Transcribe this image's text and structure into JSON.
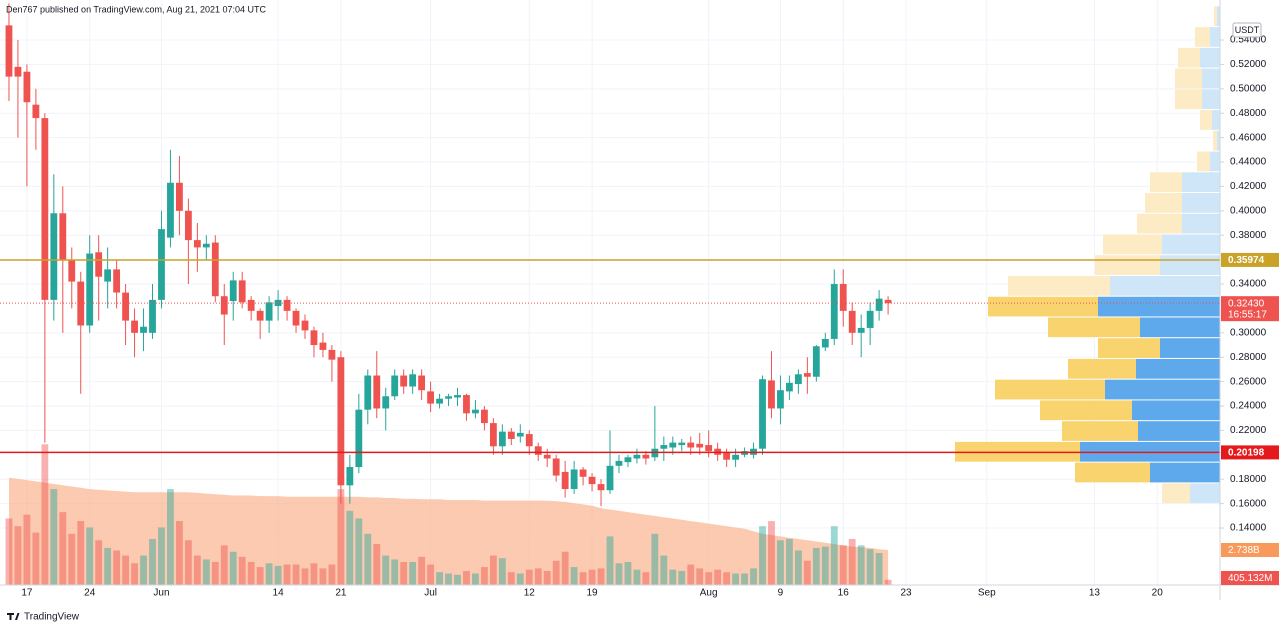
{
  "header": "Den767 published on TradingView.com, Aug 21, 2021 07:04 UTC",
  "footer": "TradingView",
  "chart_data": {
    "type": "candlestick",
    "currency": "USDT",
    "x": [
      "05-15",
      "05-16",
      "05-17",
      "05-18",
      "05-19",
      "05-20",
      "05-21",
      "05-22",
      "05-23",
      "05-24",
      "05-25",
      "05-26",
      "05-27",
      "05-28",
      "05-29",
      "05-30",
      "05-31",
      "06-01",
      "06-02",
      "06-03",
      "06-04",
      "06-05",
      "06-06",
      "06-07",
      "06-08",
      "06-09",
      "06-10",
      "06-11",
      "06-12",
      "06-13",
      "06-14",
      "06-15",
      "06-16",
      "06-17",
      "06-18",
      "06-19",
      "06-20",
      "06-21",
      "06-22",
      "06-23",
      "06-24",
      "06-25",
      "06-26",
      "06-27",
      "06-28",
      "06-29",
      "06-30",
      "07-01",
      "07-02",
      "07-03",
      "07-04",
      "07-05",
      "07-06",
      "07-07",
      "07-08",
      "07-09",
      "07-10",
      "07-11",
      "07-12",
      "07-13",
      "07-14",
      "07-15",
      "07-16",
      "07-17",
      "07-18",
      "07-19",
      "07-20",
      "07-21",
      "07-22",
      "07-23",
      "07-24",
      "07-25",
      "07-26",
      "07-27",
      "07-28",
      "07-29",
      "07-30",
      "07-31",
      "08-01",
      "08-02",
      "08-03",
      "08-04",
      "08-05",
      "08-06",
      "08-07",
      "08-08",
      "08-09",
      "08-10",
      "08-11",
      "08-12",
      "08-13",
      "08-14",
      "08-15",
      "08-16",
      "08-17",
      "08-18",
      "08-19",
      "08-20",
      "08-21"
    ],
    "open": [
      0.552,
      0.518,
      0.514,
      0.487,
      0.476,
      0.327,
      0.398,
      0.36,
      0.342,
      0.306,
      0.366,
      0.342,
      0.352,
      0.333,
      0.31,
      0.3,
      0.3,
      0.327,
      0.378,
      0.423,
      0.4,
      0.376,
      0.37,
      0.374,
      0.33,
      0.326,
      0.343,
      0.327,
      0.318,
      0.31,
      0.322,
      0.327,
      0.318,
      0.31,
      0.302,
      0.292,
      0.286,
      0.28,
      0.175,
      0.19,
      0.237,
      0.265,
      0.238,
      0.248,
      0.265,
      0.256,
      0.265,
      0.252,
      0.242,
      0.246,
      0.247,
      0.249,
      0.234,
      0.237,
      0.226,
      0.207,
      0.219,
      0.215,
      0.217,
      0.207,
      0.2,
      0.197,
      0.186,
      0.172,
      0.188,
      0.182,
      0.176,
      0.171,
      0.191,
      0.194,
      0.197,
      0.2,
      0.198,
      0.205,
      0.206,
      0.208,
      0.21,
      0.209,
      0.208,
      0.205,
      0.202,
      0.196,
      0.2,
      0.2,
      0.205,
      0.261,
      0.238,
      0.252,
      0.258,
      0.267,
      0.264,
      0.288,
      0.295,
      0.34,
      0.318,
      0.3,
      0.304,
      0.318,
      0.327
    ],
    "high": [
      0.57,
      0.54,
      0.52,
      0.5,
      0.48,
      0.43,
      0.42,
      0.37,
      0.35,
      0.38,
      0.38,
      0.37,
      0.36,
      0.34,
      0.32,
      0.32,
      0.34,
      0.4,
      0.45,
      0.445,
      0.41,
      0.39,
      0.38,
      0.38,
      0.34,
      0.35,
      0.35,
      0.33,
      0.32,
      0.33,
      0.335,
      0.33,
      0.32,
      0.315,
      0.305,
      0.3,
      0.29,
      0.285,
      0.2,
      0.25,
      0.27,
      0.285,
      0.255,
      0.27,
      0.27,
      0.27,
      0.27,
      0.26,
      0.25,
      0.25,
      0.255,
      0.25,
      0.245,
      0.24,
      0.23,
      0.225,
      0.222,
      0.225,
      0.22,
      0.21,
      0.205,
      0.2,
      0.195,
      0.195,
      0.19,
      0.185,
      0.18,
      0.22,
      0.2,
      0.2,
      0.205,
      0.203,
      0.24,
      0.215,
      0.215,
      0.213,
      0.215,
      0.218,
      0.22,
      0.21,
      0.205,
      0.205,
      0.206,
      0.21,
      0.265,
      0.285,
      0.265,
      0.265,
      0.27,
      0.28,
      0.29,
      0.3,
      0.352,
      0.352,
      0.325,
      0.315,
      0.325,
      0.335,
      0.33
    ],
    "low": [
      0.49,
      0.46,
      0.42,
      0.45,
      0.21,
      0.31,
      0.3,
      0.32,
      0.25,
      0.3,
      0.31,
      0.32,
      0.32,
      0.29,
      0.28,
      0.285,
      0.295,
      0.32,
      0.37,
      0.38,
      0.34,
      0.35,
      0.36,
      0.325,
      0.29,
      0.31,
      0.32,
      0.31,
      0.295,
      0.3,
      0.31,
      0.31,
      0.3,
      0.295,
      0.28,
      0.28,
      0.26,
      0.16,
      0.16,
      0.185,
      0.225,
      0.23,
      0.22,
      0.245,
      0.25,
      0.25,
      0.245,
      0.235,
      0.238,
      0.24,
      0.24,
      0.228,
      0.23,
      0.22,
      0.2,
      0.2,
      0.208,
      0.21,
      0.2,
      0.195,
      0.19,
      0.178,
      0.165,
      0.168,
      0.175,
      0.17,
      0.158,
      0.168,
      0.185,
      0.19,
      0.193,
      0.192,
      0.195,
      0.195,
      0.2,
      0.203,
      0.2,
      0.2,
      0.198,
      0.195,
      0.19,
      0.19,
      0.198,
      0.197,
      0.2,
      0.23,
      0.225,
      0.245,
      0.25,
      0.25,
      0.26,
      0.285,
      0.29,
      0.305,
      0.29,
      0.28,
      0.29,
      0.31,
      0.315
    ],
    "close": [
      0.51,
      0.51,
      0.489,
      0.476,
      0.327,
      0.398,
      0.36,
      0.342,
      0.306,
      0.365,
      0.346,
      0.352,
      0.333,
      0.31,
      0.3,
      0.305,
      0.327,
      0.385,
      0.423,
      0.4,
      0.376,
      0.37,
      0.373,
      0.33,
      0.315,
      0.343,
      0.325,
      0.318,
      0.31,
      0.325,
      0.327,
      0.318,
      0.306,
      0.302,
      0.29,
      0.286,
      0.278,
      0.175,
      0.19,
      0.237,
      0.265,
      0.238,
      0.248,
      0.265,
      0.256,
      0.266,
      0.253,
      0.242,
      0.246,
      0.248,
      0.249,
      0.234,
      0.237,
      0.226,
      0.207,
      0.219,
      0.213,
      0.218,
      0.207,
      0.2,
      0.197,
      0.183,
      0.172,
      0.188,
      0.182,
      0.176,
      0.171,
      0.191,
      0.195,
      0.198,
      0.2,
      0.197,
      0.205,
      0.208,
      0.21,
      0.21,
      0.206,
      0.206,
      0.203,
      0.2,
      0.196,
      0.2,
      0.203,
      0.205,
      0.262,
      0.238,
      0.253,
      0.259,
      0.266,
      0.264,
      0.289,
      0.295,
      0.34,
      0.318,
      0.3,
      0.304,
      0.318,
      0.328,
      0.3243
    ],
    "up_color": "#26a69a",
    "down_color": "#ef5350",
    "volume": [
      5200,
      4600,
      5500,
      4100,
      11000,
      7500,
      5700,
      4000,
      5000,
      4500,
      3500,
      2900,
      2700,
      2300,
      1700,
      2300,
      3600,
      4500,
      7500,
      5000,
      3500,
      2300,
      2000,
      1800,
      3100,
      2600,
      2200,
      1800,
      1400,
      1700,
      1500,
      1600,
      1600,
      1300,
      1700,
      1300,
      1600,
      7500,
      5800,
      5200,
      4000,
      3200,
      2300,
      2000,
      1800,
      1800,
      2200,
      1600,
      1000,
      900,
      800,
      1100,
      900,
      1400,
      2300,
      2100,
      1000,
      900,
      1200,
      1300,
      1100,
      1900,
      2600,
      1400,
      1000,
      1200,
      1300,
      3800,
      1700,
      1800,
      1200,
      1000,
      4000,
      2300,
      1200,
      1100,
      1600,
      1300,
      1000,
      1200,
      1000,
      900,
      900,
      1300,
      4600,
      5000,
      3500,
      3600,
      2700,
      1900,
      2900,
      3000,
      4600,
      3100,
      3600,
      3100,
      2800,
      2500,
      405.132
    ],
    "volume_ma": [
      8400,
      8300,
      8200,
      8100,
      8000,
      7900,
      7800,
      7700,
      7600,
      7500,
      7450,
      7400,
      7350,
      7300,
      7250,
      7250,
      7250,
      7250,
      7250,
      7250,
      7250,
      7200,
      7150,
      7100,
      7050,
      7000,
      7000,
      7000,
      6950,
      6950,
      6950,
      6900,
      6900,
      6900,
      6900,
      6900,
      6900,
      6900,
      6900,
      6900,
      6850,
      6850,
      6800,
      6800,
      6750,
      6750,
      6700,
      6700,
      6700,
      6650,
      6650,
      6650,
      6650,
      6600,
      6600,
      6600,
      6600,
      6600,
      6600,
      6600,
      6600,
      6550,
      6500,
      6400,
      6300,
      6200,
      6000,
      5900,
      5800,
      5700,
      5600,
      5500,
      5400,
      5300,
      5200,
      5100,
      5000,
      4900,
      4800,
      4700,
      4600,
      4500,
      4400,
      4200,
      4000,
      3900,
      3800,
      3700,
      3600,
      3500,
      3400,
      3300,
      3200,
      3100,
      3000,
      2950,
      2900,
      2800,
      2738
    ],
    "volume_ma_color": "#f9b48e",
    "volume_label": {
      "value": 405.132,
      "label": "405.132M"
    },
    "volume_ma_label": {
      "value": 2738,
      "label": "2.738B"
    },
    "xlim": [
      "05-14",
      "09-27"
    ],
    "xticks": [
      {
        "value": "05-17",
        "label": "17"
      },
      {
        "value": "05-24",
        "label": "24"
      },
      {
        "value": "06-01",
        "label": "Jun"
      },
      {
        "value": "06-14",
        "label": "14"
      },
      {
        "value": "06-21",
        "label": "21"
      },
      {
        "value": "07-01",
        "label": "Jul"
      },
      {
        "value": "07-12",
        "label": "12"
      },
      {
        "value": "07-19",
        "label": "19"
      },
      {
        "value": "08-01",
        "label": "Aug"
      },
      {
        "value": "08-09",
        "label": "9"
      },
      {
        "value": "08-16",
        "label": "16"
      },
      {
        "value": "08-23",
        "label": "23"
      },
      {
        "value": "09-01",
        "label": "Sep"
      },
      {
        "value": "09-13",
        "label": "13"
      },
      {
        "value": "09-20",
        "label": "20"
      }
    ],
    "ylim": [
      0.0933,
      0.5728
    ],
    "yticks": [
      {
        "value": 0.54,
        "label": "0.54000"
      },
      {
        "value": 0.52,
        "label": "0.52000"
      },
      {
        "value": 0.5,
        "label": "0.50000"
      },
      {
        "value": 0.48,
        "label": "0.48000"
      },
      {
        "value": 0.46,
        "label": "0.46000"
      },
      {
        "value": 0.44,
        "label": "0.44000"
      },
      {
        "value": 0.42,
        "label": "0.42000"
      },
      {
        "value": 0.4,
        "label": "0.40000"
      },
      {
        "value": 0.38,
        "label": "0.38000"
      },
      {
        "value": 0.34,
        "label": "0.34000"
      },
      {
        "value": 0.3,
        "label": "0.30000"
      },
      {
        "value": 0.28,
        "label": "0.28000"
      },
      {
        "value": 0.26,
        "label": "0.26000"
      },
      {
        "value": 0.24,
        "label": "0.24000"
      },
      {
        "value": 0.22,
        "label": "0.22000"
      },
      {
        "value": 0.18,
        "label": "0.18000"
      },
      {
        "value": 0.16,
        "label": "0.16000"
      },
      {
        "value": 0.14,
        "label": "0.14000"
      }
    ],
    "grid": true,
    "price_lines": [
      {
        "value": 0.35974,
        "label": "0.35974",
        "color": "#c9a227"
      },
      {
        "value": 0.20198,
        "label": "0.20198",
        "color": "#e5191b"
      }
    ],
    "last_price": {
      "value": 0.3243,
      "label": "0.32430",
      "countdown": "16:55:17",
      "color": "#ef5350"
    },
    "volume_profile": {
      "bins": [
        0.16,
        0.177,
        0.194,
        0.211,
        0.228,
        0.245,
        0.262,
        0.279,
        0.296,
        0.313,
        0.33,
        0.347,
        0.364,
        0.381,
        0.398,
        0.415,
        0.432,
        0.449,
        0.466,
        0.483,
        0.5,
        0.517,
        0.534,
        0.551,
        0.568
      ],
      "up": [
        30,
        70,
        140,
        82,
        88,
        115,
        84,
        60,
        80,
        122,
        110,
        60,
        58,
        38,
        38,
        38,
        10,
        3,
        8,
        18,
        18,
        20,
        10,
        3
      ],
      "down": [
        28,
        75,
        125,
        76,
        92,
        110,
        68,
        62,
        92,
        110,
        102,
        65,
        59,
        45,
        37,
        32,
        13,
        4,
        12,
        27,
        27,
        22,
        15,
        3
      ],
      "value_area": [
        0.177,
        0.33
      ],
      "up_color": "#5ea9ec",
      "down_color": "#f9d46e",
      "up_color_outside": "#cfe6f8",
      "down_color_outside": "#fcebc4"
    }
  }
}
